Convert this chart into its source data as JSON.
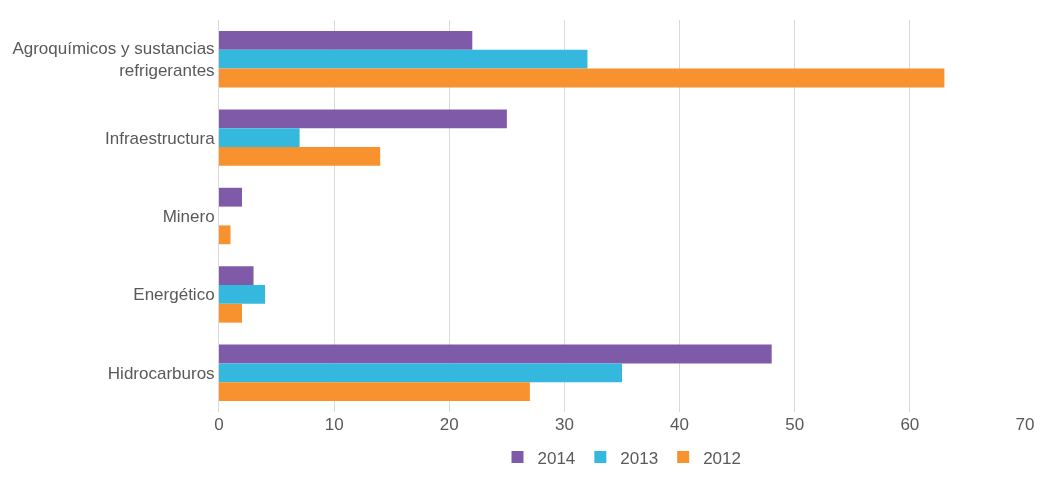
{
  "chart_data": {
    "type": "bar",
    "orientation": "horizontal",
    "categories": [
      "Agroquímicos y sustancias refrigerantes",
      "Infraestructura",
      "Minero",
      "Energético",
      "Hidrocarburos"
    ],
    "series": [
      {
        "name": "2014",
        "color": "#7f5aa8",
        "values": [
          22,
          25,
          2,
          3,
          48
        ]
      },
      {
        "name": "2013",
        "color": "#35b8dd",
        "values": [
          32,
          7,
          0,
          4,
          35
        ]
      },
      {
        "name": "2012",
        "color": "#f7922e",
        "values": [
          63,
          14,
          1,
          2,
          27
        ]
      }
    ],
    "xlim": [
      0,
      70
    ],
    "xticks": [
      0,
      10,
      20,
      30,
      40,
      50,
      60,
      70
    ],
    "grid": "x",
    "legend": "bottom"
  }
}
